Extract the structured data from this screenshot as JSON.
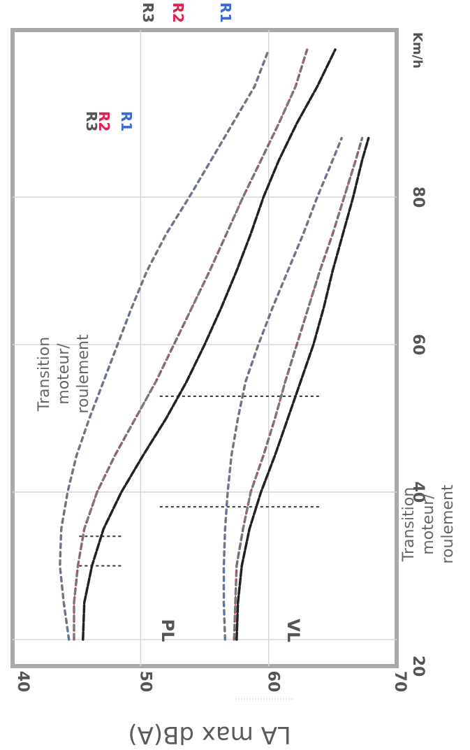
{
  "chart_data": {
    "type": "line",
    "title": "",
    "xlabel": "Km/h",
    "ylabel": "LA max dB(A)",
    "xlim": [
      20,
      100
    ],
    "ylim": [
      40,
      70
    ],
    "x_ticks": [
      "20",
      "40",
      "60",
      "80"
    ],
    "x_unit": "Km/h",
    "y_ticks": [
      "40",
      "50",
      "60",
      "70"
    ],
    "grid": true,
    "groups": [
      {
        "name": "PL",
        "series": [
          {
            "name": "R3",
            "color": "#222222",
            "x": [
              20,
              25,
              30,
              35,
              40,
              45,
              50,
              55,
              60,
              65,
              70,
              75,
              80,
              85,
              88
            ],
            "y": [
              57.5,
              57.6,
              57.9,
              58.5,
              59.4,
              60.5,
              61.5,
              62.5,
              63.5,
              64.3,
              65.0,
              65.8,
              66.6,
              67.3,
              67.8
            ]
          },
          {
            "name": "R2",
            "color": "#e02050",
            "x": [
              20,
              25,
              30,
              35,
              40,
              45,
              50,
              55,
              60,
              65,
              70,
              75,
              80,
              85,
              88
            ],
            "y": [
              57.3,
              57.4,
              57.5,
              58.0,
              58.6,
              59.6,
              60.5,
              61.3,
              62.2,
              63.1,
              64.0,
              65.0,
              65.9,
              66.8,
              67.3
            ]
          },
          {
            "name": "R1",
            "color": "#3a6ad6",
            "x": [
              20,
              25,
              30,
              35,
              40,
              45,
              50,
              55,
              60,
              65,
              70,
              75,
              80,
              85,
              88
            ],
            "y": [
              56.6,
              56.5,
              56.5,
              56.6,
              56.8,
              57.1,
              57.6,
              58.2,
              59.2,
              60.3,
              61.5,
              62.7,
              63.8,
              65.0,
              65.7
            ]
          }
        ]
      },
      {
        "name": "VL",
        "series": [
          {
            "name": "R3",
            "color": "#222222",
            "x": [
              20,
              25,
              30,
              35,
              40,
              45,
              50,
              55,
              60,
              65,
              70,
              75,
              80,
              85,
              90,
              95,
              100
            ],
            "y": [
              45.5,
              45.6,
              46.2,
              47.1,
              48.5,
              50.2,
              52.0,
              53.6,
              55.0,
              56.3,
              57.5,
              58.6,
              59.6,
              60.8,
              62.2,
              63.8,
              65.2
            ]
          },
          {
            "name": "R2",
            "color": "#e02050",
            "x": [
              20,
              25,
              30,
              35,
              40,
              45,
              50,
              55,
              60,
              65,
              70,
              75,
              80,
              85,
              90,
              95,
              100
            ],
            "y": [
              44.8,
              44.8,
              45.1,
              45.6,
              46.6,
              48.0,
              49.6,
              51.2,
              52.6,
              54.0,
              55.4,
              56.7,
              58.0,
              59.4,
              60.8,
              62.1,
              63.0
            ]
          },
          {
            "name": "R1",
            "color": "#3a6ad6",
            "x": [
              20,
              25,
              30,
              35,
              40,
              45,
              50,
              55,
              60,
              65,
              70,
              75,
              80,
              85,
              90,
              95,
              100
            ],
            "y": [
              44.4,
              44.0,
              43.7,
              43.8,
              44.3,
              45.0,
              46.0,
              47.1,
              48.2,
              49.3,
              50.5,
              52.0,
              53.8,
              55.5,
              57.2,
              58.9,
              60.0
            ]
          }
        ]
      }
    ],
    "transition_markers": [
      {
        "group": "PL",
        "x": [
          38,
          53
        ]
      },
      {
        "group": "VL",
        "x": [
          30,
          34
        ]
      }
    ],
    "annotations": [
      {
        "text_lines": [
          "Transition",
          "moteur/",
          "roulement"
        ],
        "group": "PL"
      },
      {
        "text_lines": [
          "Transition",
          "moteur/",
          "roulement"
        ],
        "group": "VL"
      }
    ]
  }
}
